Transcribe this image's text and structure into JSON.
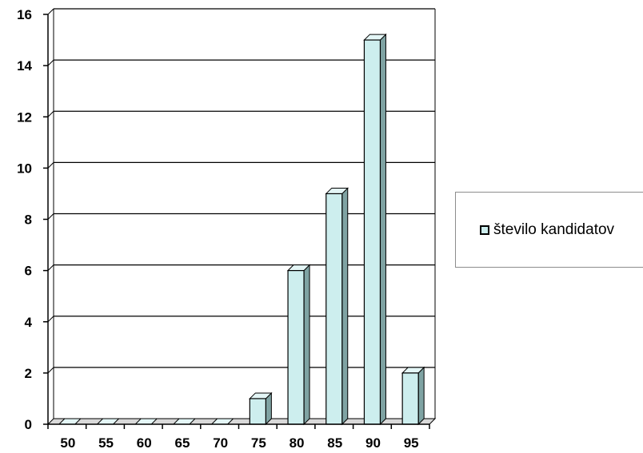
{
  "chart_data": {
    "type": "bar",
    "categories": [
      "50",
      "55",
      "60",
      "65",
      "70",
      "75",
      "80",
      "85",
      "90",
      "95"
    ],
    "series": [
      {
        "name": "število kandidatov",
        "values": [
          0,
          0,
          0,
          0,
          0,
          1,
          6,
          9,
          15,
          2
        ]
      }
    ],
    "ylim": [
      0,
      16
    ],
    "yticks": [
      "0",
      "2",
      "4",
      "6",
      "8",
      "10",
      "12",
      "14",
      "16"
    ],
    "grid": true,
    "legend_position": "right",
    "colors": {
      "bar_front": "#cdeeee",
      "bar_side": "#7fa3a3",
      "bar_top": "#e4f6f6"
    }
  },
  "legend": {
    "label": "število kandidatov"
  }
}
